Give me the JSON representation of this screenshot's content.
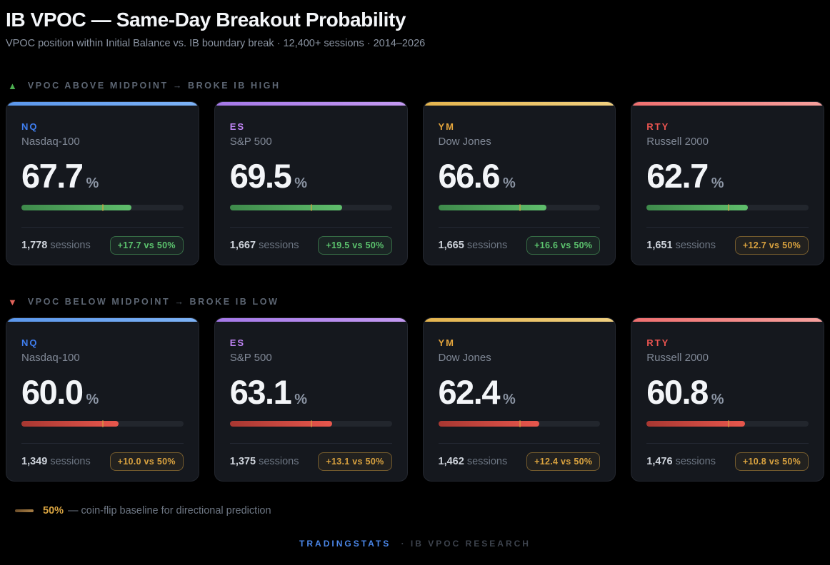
{
  "page": {
    "title": "IB VPOC — Same-Day Breakout Probability",
    "subtitle": "VPOC position within Initial Balance vs. IB boundary break · 12,400+ sessions · 2014–2026"
  },
  "colors": {
    "background": "#000000",
    "card_bg": "#15181e",
    "card_border": "#23272f",
    "bar_track": "#22262d",
    "green_fill_from": "#3e8a4b",
    "green_fill_to": "#5fbe6c",
    "red_fill_from": "#a83731",
    "red_fill_to": "#e8574d",
    "badge_green": "#5cc46e",
    "badge_amber": "#d9a23f",
    "baseline_tick": "#d9a441",
    "brand_blue": "#4a86e8"
  },
  "sections": [
    {
      "icon": "▲",
      "label": "VPOC ABOVE MIDPOINT → BROKE IB HIGH",
      "tone": "green",
      "cards": [
        {
          "ticker": "NQ",
          "name": "Nasdaq-100",
          "value": "67.7",
          "unit": "%",
          "bar_pct": 67.7,
          "sessions": "1,778",
          "sessions_label": "sessions",
          "badge": "+17.7 vs 50%",
          "badge_tone": "green",
          "accent": "#3f7ef0",
          "accent_from": "#5b97ec",
          "accent_to": "#7db3f7"
        },
        {
          "ticker": "ES",
          "name": "S&P 500",
          "value": "69.5",
          "unit": "%",
          "bar_pct": 69.5,
          "sessions": "1,667",
          "sessions_label": "sessions",
          "badge": "+19.5 vs 50%",
          "badge_tone": "green",
          "accent": "#c084f5",
          "accent_from": "#a478e8",
          "accent_to": "#c49af2"
        },
        {
          "ticker": "YM",
          "name": "Dow Jones",
          "value": "66.6",
          "unit": "%",
          "bar_pct": 66.6,
          "sessions": "1,665",
          "sessions_label": "sessions",
          "badge": "+16.6 vs 50%",
          "badge_tone": "green",
          "accent": "#e3a43c",
          "accent_from": "#e4b44e",
          "accent_to": "#f0d080"
        },
        {
          "ticker": "RTY",
          "name": "Russell 2000",
          "value": "62.7",
          "unit": "%",
          "bar_pct": 62.7,
          "sessions": "1,651",
          "sessions_label": "sessions",
          "badge": "+12.7 vs 50%",
          "badge_tone": "amber",
          "accent": "#ea5450",
          "accent_from": "#ef6f6f",
          "accent_to": "#f7a19e"
        }
      ]
    },
    {
      "icon": "▼",
      "label": "VPOC BELOW MIDPOINT → BROKE IB LOW",
      "tone": "red",
      "cards": [
        {
          "ticker": "NQ",
          "name": "Nasdaq-100",
          "value": "60.0",
          "unit": "%",
          "bar_pct": 60.0,
          "sessions": "1,349",
          "sessions_label": "sessions",
          "badge": "+10.0 vs 50%",
          "badge_tone": "amber",
          "accent": "#3f7ef0",
          "accent_from": "#5b97ec",
          "accent_to": "#7db3f7"
        },
        {
          "ticker": "ES",
          "name": "S&P 500",
          "value": "63.1",
          "unit": "%",
          "bar_pct": 63.1,
          "sessions": "1,375",
          "sessions_label": "sessions",
          "badge": "+13.1 vs 50%",
          "badge_tone": "amber",
          "accent": "#c084f5",
          "accent_from": "#a478e8",
          "accent_to": "#c49af2"
        },
        {
          "ticker": "YM",
          "name": "Dow Jones",
          "value": "62.4",
          "unit": "%",
          "bar_pct": 62.4,
          "sessions": "1,462",
          "sessions_label": "sessions",
          "badge": "+12.4 vs 50%",
          "badge_tone": "amber",
          "accent": "#e3a43c",
          "accent_from": "#e4b44e",
          "accent_to": "#f0d080"
        },
        {
          "ticker": "RTY",
          "name": "Russell 2000",
          "value": "60.8",
          "unit": "%",
          "bar_pct": 60.8,
          "sessions": "1,476",
          "sessions_label": "sessions",
          "badge": "+10.8 vs 50%",
          "badge_tone": "amber",
          "accent": "#ea5450",
          "accent_from": "#ef6f6f",
          "accent_to": "#f7a19e"
        }
      ]
    }
  ],
  "legend": {
    "value": "50%",
    "text": "— coin-flip baseline for directional prediction"
  },
  "footer": {
    "brand": "TRADINGSTATS",
    "rest": "· IB VPOC RESEARCH"
  },
  "chart_data": {
    "type": "bar",
    "title": "IB VPOC — Same-Day Breakout Probability",
    "subtitle": "VPOC position within Initial Balance vs. IB boundary break",
    "categories": [
      "NQ Nasdaq-100",
      "ES S&P 500",
      "YM Dow Jones",
      "RTY Russell 2000"
    ],
    "series": [
      {
        "name": "VPOC above midpoint → broke IB high",
        "values": [
          67.7,
          69.5,
          66.6,
          62.7
        ],
        "sessions": [
          1778,
          1667,
          1665,
          1651
        ],
        "delta_vs_baseline": [
          17.7,
          19.5,
          16.6,
          12.7
        ]
      },
      {
        "name": "VPOC below midpoint → broke IB low",
        "values": [
          60.0,
          63.1,
          62.4,
          60.8
        ],
        "sessions": [
          1349,
          1375,
          1462,
          1476
        ],
        "delta_vs_baseline": [
          10.0,
          13.1,
          12.4,
          10.8
        ]
      }
    ],
    "baseline": 50,
    "unit": "%",
    "xlim": [
      0,
      100
    ],
    "total_sessions": "12,400+",
    "period": "2014–2026"
  }
}
